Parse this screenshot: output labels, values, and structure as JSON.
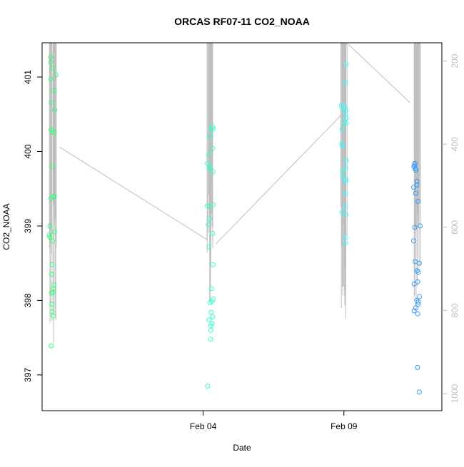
{
  "chart_data": {
    "type": "scatter",
    "title": "ORCAS RF07-11 CO2_NOAA",
    "xlabel": "Date",
    "ylabel": "CO2_NOAA",
    "x_ticks": [
      {
        "label": "Feb 04",
        "day": 4
      },
      {
        "label": "Feb 09",
        "day": 9
      }
    ],
    "xlim_days": [
      -1.72,
      12.48
    ],
    "ylim": [
      396.52,
      401.46
    ],
    "y_ticks": [
      "397",
      "398",
      "399",
      "400",
      "401"
    ],
    "secondary_axis": {
      "color": "#bebebe",
      "lim_top_to_bottom": [
        156,
        1041
      ],
      "ticks": [
        "200",
        "400",
        "600",
        "800",
        "1000"
      ]
    },
    "grid": false,
    "legend": "none",
    "flights": [
      {
        "color": "#33ff77",
        "day": -1.35,
        "spread": 0.25,
        "values": [
          401.27,
          401.2,
          401.12,
          401.03,
          400.97,
          400.82,
          400.66,
          400.56,
          400.29,
          400.27,
          400.25,
          399.8,
          399.4,
          399.39,
          399.37,
          399.0,
          398.92,
          398.88,
          398.85,
          398.8,
          398.48,
          398.35,
          398.21,
          398.16,
          398.11,
          398.1,
          397.95,
          397.85,
          397.79,
          397.39
        ]
      },
      {
        "color": "#33ffcc",
        "day": 4.25,
        "spread": 0.22,
        "values": [
          400.33,
          400.3,
          400.3,
          400.2,
          400.04,
          399.96,
          399.84,
          399.8,
          399.77,
          399.73,
          399.29,
          399.27,
          399.26,
          399.1,
          399.02,
          398.9,
          398.72,
          398.48,
          398.16,
          398.02,
          397.99,
          397.97,
          397.84,
          397.78,
          397.74,
          397.69,
          397.66,
          397.6,
          397.48,
          396.85
        ]
      },
      {
        "color": "#33ffff",
        "day": 9.0,
        "spread": 0.2,
        "values": [
          401.17,
          400.93,
          400.62,
          400.6,
          400.58,
          400.55,
          400.5,
          400.45,
          400.4,
          400.38,
          400.3,
          400.1,
          400.08,
          399.88,
          399.78,
          399.73,
          399.66,
          399.62,
          399.6,
          399.44,
          399.26,
          399.18,
          399.15,
          398.85,
          398.77
        ]
      },
      {
        "color": "#3399ff",
        "day": 11.6,
        "spread": 0.27,
        "values": [
          399.84,
          399.82,
          399.8,
          399.77,
          399.75,
          399.6,
          399.55,
          399.52,
          399.44,
          399.33,
          399.0,
          398.98,
          398.8,
          398.52,
          398.5,
          398.4,
          398.38,
          398.25,
          398.22,
          398.05,
          398.0,
          397.98,
          397.95,
          397.9,
          397.86,
          397.82,
          397.1,
          396.77
        ]
      }
    ],
    "altitude_trace": {
      "color": "#bebebe",
      "flight_days": [
        -1.35,
        4.25,
        9.0,
        11.6
      ],
      "flight_widths": [
        0.28,
        0.22,
        0.22,
        0.25
      ],
      "flight_extents": [
        [
          156,
          880
        ],
        [
          156,
          800
        ],
        [
          156,
          820
        ],
        [
          156,
          810
        ]
      ],
      "transits": [
        [
          [
            -1.1,
            407
          ],
          [
            4.15,
            630
          ]
        ],
        [
          [
            4.45,
            640
          ],
          [
            8.9,
            330
          ]
        ],
        [
          [
            9.1,
            156
          ],
          [
            11.35,
            300
          ]
        ]
      ]
    }
  }
}
